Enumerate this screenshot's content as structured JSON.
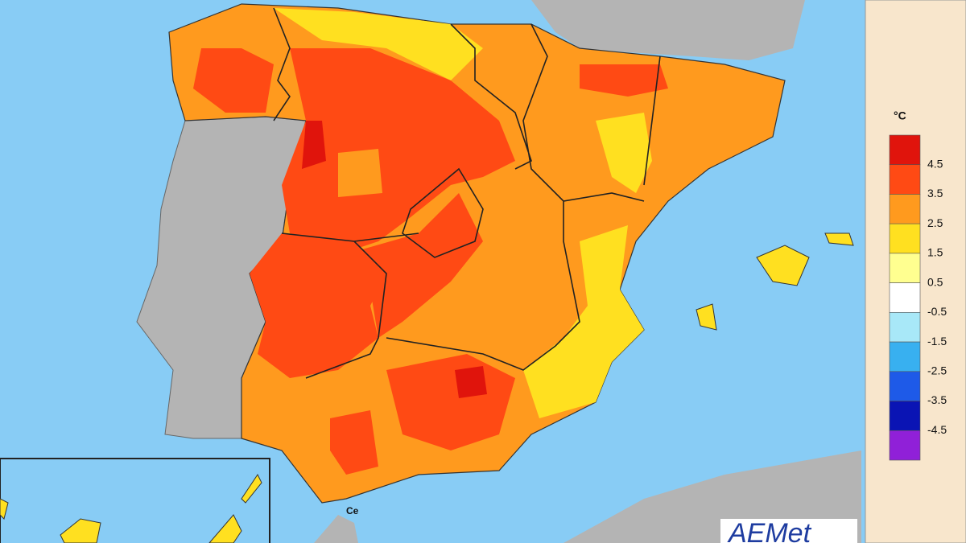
{
  "legend": {
    "title": "°C",
    "colors": [
      "#e0140c",
      "#ff4a14",
      "#ff9a1e",
      "#ffe020",
      "#ffff90",
      "#ffffff",
      "#a8e8f8",
      "#38b0f0",
      "#1e5ae8",
      "#0a14b4",
      "#9020d8"
    ],
    "labels": [
      "4.5",
      "3.5",
      "2.5",
      "1.5",
      "0.5",
      "-0.5",
      "-1.5",
      "-2.5",
      "-3.5",
      "-4.5"
    ]
  },
  "map_label": "Ce",
  "logo": "AEMet"
}
